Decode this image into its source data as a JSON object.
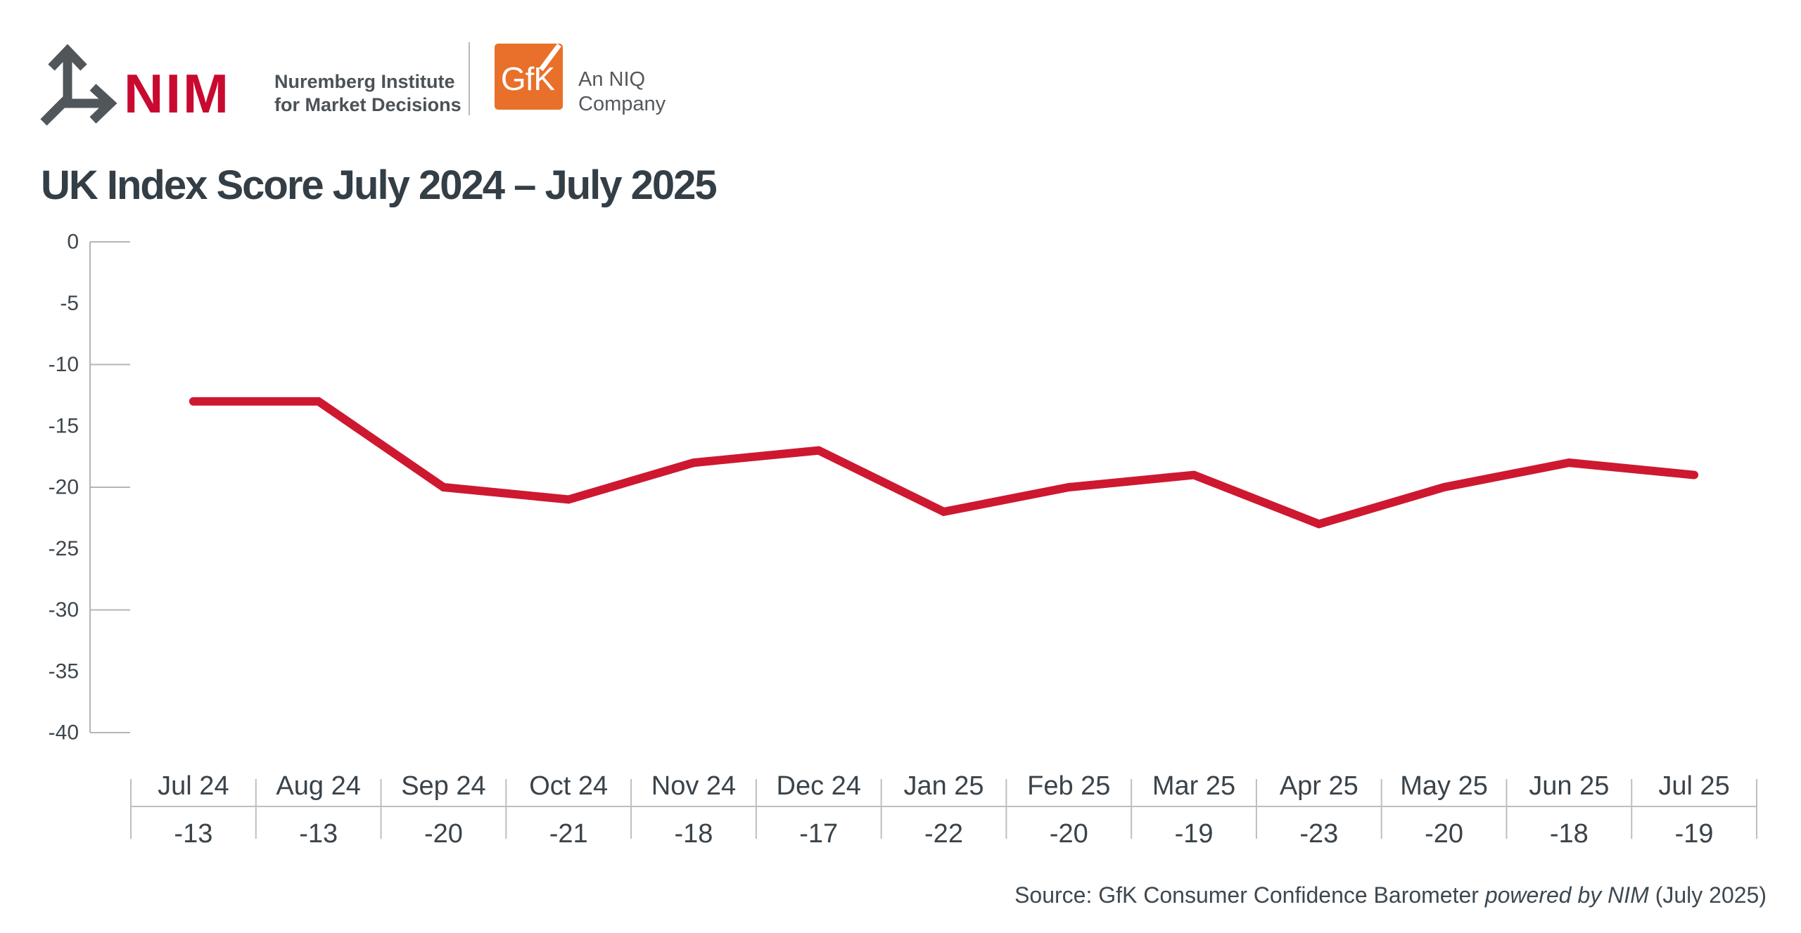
{
  "header": {
    "nim_wordmark": "NIM",
    "nim_institute_line1": "Nuremberg Institute",
    "nim_institute_line2": "for Market Decisions",
    "gfk_logo_text": "GfK",
    "niq_line1": "An NIQ",
    "niq_line2": "Company",
    "colors": {
      "nim_red": "#c90a30",
      "gfk_orange": "#e8702a",
      "logo_gray": "#50565a",
      "line_red": "#ce1830",
      "axis_gray": "#b2b6b8",
      "table_line_gray": "#bcbfc1",
      "text_dark": "#3a434a"
    }
  },
  "title": "UK Index Score July 2024 – July 2025",
  "chart_data": {
    "type": "line",
    "title": "UK Index Score July 2024 – July 2025",
    "categories": [
      "Jul 24",
      "Aug 24",
      "Sep 24",
      "Oct 24",
      "Nov 24",
      "Dec 24",
      "Jan 25",
      "Feb 25",
      "Mar 25",
      "Apr 25",
      "May 25",
      "Jun 25",
      "Jul 25"
    ],
    "series": [
      {
        "name": "UK Index Score",
        "values": [
          -13,
          -13,
          -20,
          -21,
          -18,
          -17,
          -22,
          -20,
          -19,
          -23,
          -20,
          -18,
          -19
        ],
        "color": "#ce1830"
      }
    ],
    "xlabel": "",
    "ylabel": "",
    "y_axis": {
      "min": -40,
      "max": 0,
      "tick_labels": [
        "0",
        "-5",
        "-10",
        "-15",
        "-20",
        "-25",
        "-30",
        "-35",
        "-40"
      ],
      "label_interval": 5,
      "major_tick_interval": 10
    },
    "grid": "off",
    "legend_position": "none",
    "value_table_shown": true
  },
  "source": {
    "part1": "Source: GfK Consumer Confidence Barometer ",
    "part2_italic": "powered by NIM",
    "part3": " (July 2025)"
  }
}
